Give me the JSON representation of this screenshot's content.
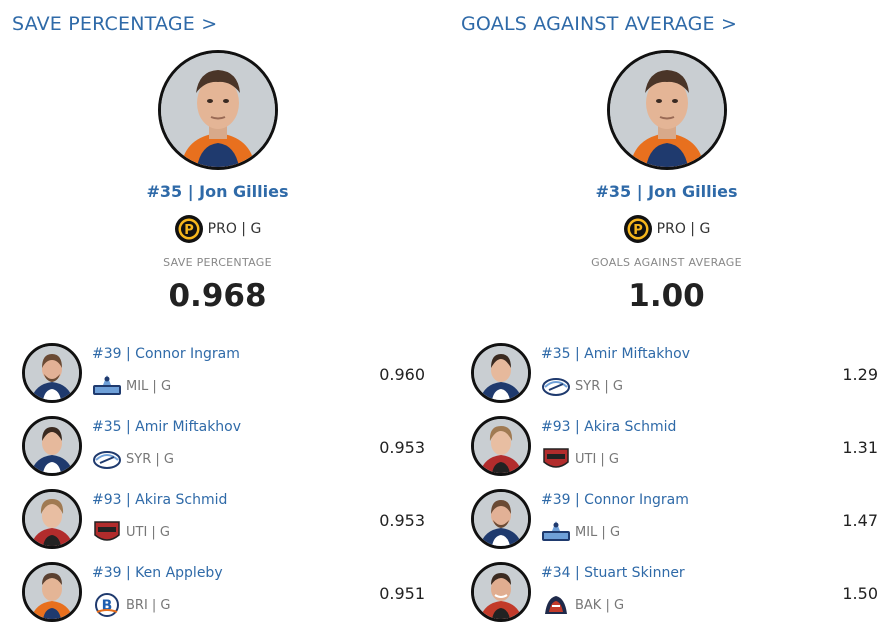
{
  "save_percentage": {
    "title": "SAVE PERCENTAGE >",
    "leader": {
      "name": "#35 | Jon Gillies",
      "team": "PRO | G",
      "stat_label": "SAVE PERCENTAGE",
      "stat_value": "0.968",
      "logo": "providence-bruins-logo",
      "jersey_color": "#e8701e"
    },
    "rows": [
      {
        "name": "#39 | Connor Ingram",
        "team": "MIL | G",
        "value": "0.960",
        "logo": "milwaukee-admirals-logo",
        "jersey_color": "#1f3a6e"
      },
      {
        "name": "#35 | Amir Miftakhov",
        "team": "SYR | G",
        "value": "0.953",
        "logo": "syracuse-crunch-logo",
        "jersey_color": "#1f3a6e"
      },
      {
        "name": "#93 | Akira Schmid",
        "team": "UTI | G",
        "value": "0.953",
        "logo": "utica-comets-logo",
        "jersey_color": "#b22c2c"
      },
      {
        "name": "#39 | Ken Appleby",
        "team": "BRI | G",
        "value": "0.951",
        "logo": "bridgeport-islanders-logo",
        "jersey_color": "#e8701e"
      }
    ]
  },
  "goals_against": {
    "title": "GOALS AGAINST AVERAGE >",
    "leader": {
      "name": "#35 | Jon Gillies",
      "team": "PRO | G",
      "stat_label": "GOALS AGAINST AVERAGE",
      "stat_value": "1.00",
      "logo": "providence-bruins-logo",
      "jersey_color": "#e8701e"
    },
    "rows": [
      {
        "name": "#35 | Amir Miftakhov",
        "team": "SYR | G",
        "value": "1.29",
        "logo": "syracuse-crunch-logo",
        "jersey_color": "#1f3a6e"
      },
      {
        "name": "#93 | Akira Schmid",
        "team": "UTI | G",
        "value": "1.31",
        "logo": "utica-comets-logo",
        "jersey_color": "#b22c2c"
      },
      {
        "name": "#39 | Connor Ingram",
        "team": "MIL | G",
        "value": "1.47",
        "logo": "milwaukee-admirals-logo",
        "jersey_color": "#1f3a6e"
      },
      {
        "name": "#34 | Stuart Skinner",
        "team": "BAK | G",
        "value": "1.50",
        "logo": "bakersfield-condors-logo",
        "jersey_color": "#c23a2a"
      }
    ]
  }
}
